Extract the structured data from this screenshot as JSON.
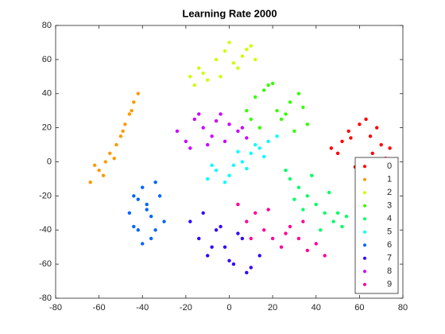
{
  "chart_data": {
    "type": "scatter",
    "title": "Learning Rate 2000",
    "xlim": [
      -80,
      80
    ],
    "ylim": [
      -80,
      80
    ],
    "xticks": [
      -80,
      -60,
      -40,
      -20,
      0,
      20,
      40,
      60,
      80
    ],
    "yticks": [
      -80,
      -60,
      -40,
      -20,
      0,
      20,
      40,
      60,
      80
    ],
    "grid": false,
    "legend": "southeast",
    "series": [
      {
        "name": "0",
        "color": "#ff0000",
        "x": [
          50,
          55,
          60,
          65,
          70,
          72,
          58,
          63,
          68,
          52,
          47,
          62,
          66,
          74,
          56
        ],
        "y": [
          5,
          18,
          22,
          15,
          10,
          2,
          -3,
          25,
          20,
          12,
          8,
          0,
          5,
          8,
          14
        ]
      },
      {
        "name": "1",
        "color": "#ff9900",
        "x": [
          -64,
          -60,
          -57,
          -55,
          -52,
          -50,
          -48,
          -46,
          -44,
          -42,
          -58,
          -53,
          -49,
          -45,
          -62
        ],
        "y": [
          -12,
          -5,
          0,
          5,
          10,
          15,
          22,
          28,
          35,
          40,
          -8,
          2,
          18,
          30,
          -2
        ]
      },
      {
        "name": "2",
        "color": "#ccff00",
        "x": [
          -18,
          -14,
          -10,
          -6,
          -2,
          2,
          6,
          10,
          -12,
          -4,
          4,
          8,
          -16,
          0,
          12
        ],
        "y": [
          50,
          55,
          48,
          60,
          65,
          58,
          62,
          68,
          52,
          50,
          55,
          66,
          45,
          70,
          60
        ]
      },
      {
        "name": "3",
        "color": "#33ff00",
        "x": [
          8,
          12,
          16,
          20,
          24,
          28,
          32,
          36,
          14,
          22,
          30,
          18,
          26,
          34,
          10
        ],
        "y": [
          30,
          38,
          42,
          46,
          25,
          35,
          40,
          22,
          20,
          30,
          18,
          45,
          28,
          32,
          25
        ]
      },
      {
        "name": "4",
        "color": "#00ff66",
        "x": [
          28,
          32,
          36,
          40,
          44,
          48,
          52,
          30,
          38,
          46,
          50,
          34,
          42,
          26,
          54
        ],
        "y": [
          -10,
          -15,
          -20,
          -25,
          -30,
          -35,
          -38,
          -22,
          -8,
          -18,
          -30,
          -28,
          -40,
          -5,
          -32
        ]
      },
      {
        "name": "5",
        "color": "#00ffff",
        "x": [
          -10,
          -6,
          -2,
          2,
          6,
          10,
          14,
          18,
          22,
          0,
          8,
          16,
          -8,
          4,
          12
        ],
        "y": [
          -10,
          -5,
          -12,
          -2,
          0,
          5,
          8,
          12,
          15,
          -8,
          -4,
          3,
          -2,
          6,
          10
        ]
      },
      {
        "name": "6",
        "color": "#0066ff",
        "x": [
          -46,
          -44,
          -42,
          -40,
          -38,
          -36,
          -34,
          -32,
          -30,
          -40,
          -36,
          -44,
          -38,
          -34,
          -42
        ],
        "y": [
          -30,
          -20,
          -40,
          -15,
          -25,
          -45,
          -12,
          -20,
          -35,
          -48,
          -32,
          -38,
          -28,
          -40,
          -22
        ]
      },
      {
        "name": "7",
        "color": "#3300ff",
        "x": [
          -18,
          -14,
          -10,
          -6,
          -2,
          2,
          6,
          10,
          14,
          -12,
          -4,
          4,
          8,
          -8,
          0
        ],
        "y": [
          -35,
          -45,
          -55,
          -40,
          -50,
          -60,
          -45,
          -62,
          -55,
          -30,
          -38,
          -42,
          -65,
          -50,
          -58
        ]
      },
      {
        "name": "8",
        "color": "#cc00ff",
        "x": [
          -24,
          -20,
          -16,
          -12,
          -8,
          -4,
          0,
          4,
          8,
          -18,
          -10,
          -2,
          6,
          -14,
          -6
        ],
        "y": [
          18,
          12,
          25,
          20,
          15,
          28,
          22,
          18,
          14,
          8,
          10,
          12,
          20,
          28,
          24
        ]
      },
      {
        "name": "9",
        "color": "#ff0099",
        "x": [
          4,
          8,
          12,
          16,
          20,
          24,
          28,
          32,
          36,
          40,
          44,
          18,
          26,
          34,
          10
        ],
        "y": [
          -25,
          -35,
          -30,
          -40,
          -45,
          -50,
          -38,
          -45,
          -52,
          -48,
          -55,
          -28,
          -42,
          -35,
          -45
        ]
      }
    ]
  }
}
